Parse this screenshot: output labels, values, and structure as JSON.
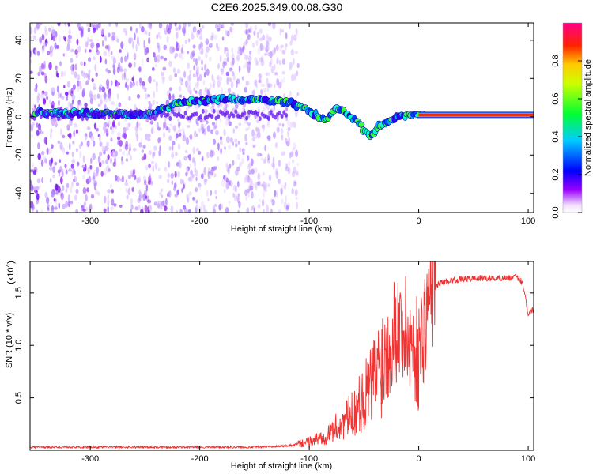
{
  "title": "C2E6.2025.349.00.08.G30",
  "colors": {
    "snr_line": "#ee3333",
    "frame": "#000000",
    "track_core": "#ff2200",
    "track_edge": "#2244ff"
  },
  "chart_data": [
    {
      "type": "heatmap",
      "name": "spectrogram",
      "xlabel": "Height of straight line (km)",
      "ylabel": "Frequency (Hz)",
      "xlim": [
        -355,
        105
      ],
      "ylim": [
        -50,
        49
      ],
      "xticks": [
        -300,
        -200,
        -100,
        0,
        100
      ],
      "yticks": [
        -40,
        -20,
        0,
        20,
        40
      ],
      "xtick_labels": [
        "-300",
        "-200",
        "-100",
        "0",
        "100"
      ],
      "ytick_labels": [
        "-40",
        "-20",
        "0",
        "20",
        "40"
      ],
      "noise_region_x": [
        -355,
        -120
      ],
      "track_points": [
        {
          "x": -350,
          "y": 2
        },
        {
          "x": -300,
          "y": 2
        },
        {
          "x": -250,
          "y": 1
        },
        {
          "x": -215,
          "y": 8
        },
        {
          "x": -180,
          "y": 9
        },
        {
          "x": -150,
          "y": 9
        },
        {
          "x": -120,
          "y": 8
        },
        {
          "x": -100,
          "y": 3
        },
        {
          "x": -85,
          "y": -2
        },
        {
          "x": -75,
          "y": 5
        },
        {
          "x": -55,
          "y": -3
        },
        {
          "x": -45,
          "y": -11
        },
        {
          "x": -35,
          "y": -4
        },
        {
          "x": -20,
          "y": 0
        },
        {
          "x": 0,
          "y": 1
        },
        {
          "x": 105,
          "y": 1
        }
      ],
      "colorbar": {
        "label": "Normalized spectral amplitude",
        "range": [
          0.0,
          1.0
        ],
        "ticks": [
          0.0,
          0.2,
          0.4,
          0.6,
          0.8
        ],
        "tick_labels": [
          "0.0",
          "0.2",
          "0.4",
          "0.6",
          "0.8"
        ],
        "colormap": [
          "#ffffff",
          "#8800ff",
          "#0000ff",
          "#00ddff",
          "#00ff00",
          "#ffff00",
          "#ff8800",
          "#ff0000",
          "#ff0088"
        ]
      }
    },
    {
      "type": "line",
      "name": "snr",
      "xlabel": "Height of straight line (km)",
      "ylabel": "SNR (10 * v/v)",
      "multiplier": "(x10",
      "multiplier_exp": "4",
      "multiplier_close": ")",
      "xlim": [
        -355,
        105
      ],
      "ylim": [
        0,
        1.8
      ],
      "xticks": [
        -300,
        -200,
        -100,
        0,
        100
      ],
      "yticks": [
        0.5,
        1.0,
        1.5
      ],
      "xtick_labels": [
        "-300",
        "-200",
        "-100",
        "0",
        "100"
      ],
      "ytick_labels": [
        "0.5",
        "1.0",
        "1.5"
      ],
      "series": [
        {
          "name": "SNR",
          "x": [
            -355,
            -300,
            -250,
            -200,
            -150,
            -120,
            -110,
            -100,
            -90,
            -80,
            -70,
            -60,
            -50,
            -40,
            -30,
            -25,
            -20,
            -15,
            -10,
            -5,
            0,
            5,
            10,
            20,
            30,
            50,
            70,
            90,
            95,
            100,
            105
          ],
          "y": [
            0.03,
            0.03,
            0.03,
            0.03,
            0.03,
            0.04,
            0.06,
            0.08,
            0.12,
            0.18,
            0.26,
            0.35,
            0.5,
            0.7,
            0.95,
            1.1,
            1.2,
            1.15,
            1.1,
            1.0,
            0.9,
            1.2,
            1.5,
            1.6,
            1.62,
            1.64,
            1.64,
            1.65,
            1.6,
            1.3,
            1.35
          ]
        }
      ]
    }
  ]
}
